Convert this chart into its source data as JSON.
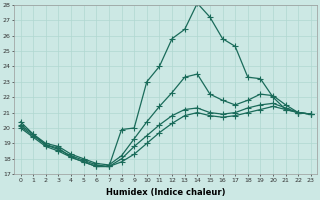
{
  "xlabel": "Humidex (Indice chaleur)",
  "bg_color": "#cce8e4",
  "line_color": "#1a6b5a",
  "grid_color": "#b0d8d0",
  "xlim": [
    -0.5,
    23.5
  ],
  "ylim": [
    17,
    28
  ],
  "xticks": [
    0,
    1,
    2,
    3,
    4,
    5,
    6,
    7,
    8,
    9,
    10,
    11,
    12,
    13,
    14,
    15,
    16,
    17,
    18,
    19,
    20,
    21,
    22,
    23
  ],
  "yticks": [
    17,
    18,
    19,
    20,
    21,
    22,
    23,
    24,
    25,
    26,
    27,
    28
  ],
  "line1_x": [
    0,
    1,
    2,
    3,
    4,
    5,
    6,
    7,
    8,
    9,
    10,
    11,
    12,
    13,
    14,
    15,
    16,
    17,
    18,
    19,
    20,
    21,
    22,
    23
  ],
  "line1_y": [
    20.4,
    19.6,
    18.9,
    18.7,
    18.1,
    17.8,
    17.5,
    17.5,
    19.9,
    20.0,
    23.0,
    24.0,
    25.8,
    26.4,
    28.1,
    27.2,
    25.8,
    25.3,
    23.3,
    23.2,
    22.0,
    21.2,
    21.0,
    20.9
  ],
  "line2_x": [
    0,
    1,
    2,
    3,
    4,
    5,
    6,
    7,
    8,
    9,
    10,
    11,
    12,
    13,
    14,
    15,
    16,
    17,
    18,
    19,
    20,
    21,
    22,
    23
  ],
  "line2_y": [
    20.2,
    19.6,
    19.0,
    18.8,
    18.3,
    18.0,
    17.7,
    17.6,
    18.2,
    19.3,
    20.4,
    21.4,
    22.3,
    23.3,
    23.5,
    22.2,
    21.8,
    21.5,
    21.8,
    22.2,
    22.1,
    21.5,
    21.0,
    20.9
  ],
  "line3_x": [
    0,
    1,
    2,
    3,
    4,
    5,
    6,
    7,
    8,
    9,
    10,
    11,
    12,
    13,
    14,
    15,
    16,
    17,
    18,
    19,
    20,
    21,
    22,
    23
  ],
  "line3_y": [
    20.1,
    19.5,
    18.9,
    18.6,
    18.2,
    17.9,
    17.6,
    17.5,
    18.0,
    18.8,
    19.5,
    20.2,
    20.8,
    21.2,
    21.3,
    21.0,
    20.9,
    21.0,
    21.3,
    21.5,
    21.6,
    21.3,
    21.0,
    20.9
  ],
  "line4_x": [
    0,
    1,
    2,
    3,
    4,
    5,
    6,
    7,
    8,
    9,
    10,
    11,
    12,
    13,
    14,
    15,
    16,
    17,
    18,
    19,
    20,
    21,
    22,
    23
  ],
  "line4_y": [
    20.0,
    19.4,
    18.8,
    18.5,
    18.1,
    17.8,
    17.5,
    17.5,
    17.8,
    18.3,
    19.0,
    19.7,
    20.3,
    20.8,
    21.0,
    20.8,
    20.7,
    20.8,
    21.0,
    21.2,
    21.4,
    21.2,
    21.0,
    20.9
  ]
}
